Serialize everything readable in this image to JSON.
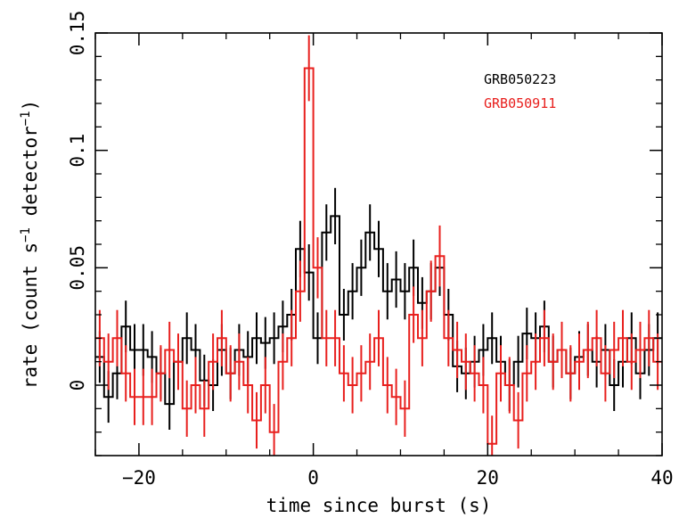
{
  "chart_data": {
    "type": "line",
    "style": "binned step histogram with 1-sigma error bars",
    "xlabel": "time since burst (s)",
    "ylabel": "rate (count s",
    "ylabel_sup1": "−1",
    "ylabel_mid": " detector",
    "ylabel_sup2": "−1",
    "ylabel_end": ")",
    "xlim": [
      -25,
      40
    ],
    "ylim": [
      -0.03,
      0.15
    ],
    "xticks": [
      -20,
      0,
      20,
      40
    ],
    "xtick_labels": [
      "−20",
      "0",
      "20",
      "40"
    ],
    "yticks": [
      0,
      0.05,
      0.1,
      0.15
    ],
    "ytick_labels": [
      "0",
      "0.05",
      "0.1",
      "0.15"
    ],
    "grid": false,
    "legend": "top-right",
    "bin_width_s": 1,
    "series": [
      {
        "name": "GRB050223",
        "color": "#000000",
        "x": [
          -25,
          -24,
          -23,
          -22,
          -21,
          -20,
          -19,
          -18,
          -17,
          -16,
          -15,
          -14,
          -13,
          -12,
          -11,
          -10,
          -9,
          -8,
          -7,
          -6,
          -5,
          -4,
          -3,
          -2,
          -1,
          0,
          1,
          2,
          3,
          4,
          5,
          6,
          7,
          8,
          9,
          10,
          11,
          12,
          13,
          14,
          15,
          16,
          17,
          18,
          19,
          20,
          21,
          22,
          23,
          24,
          25,
          26,
          27,
          28,
          29,
          30,
          31,
          32,
          33,
          34,
          35,
          36,
          37,
          38,
          39
        ],
        "values": [
          0.012,
          -0.005,
          0.005,
          0.025,
          0.015,
          0.015,
          0.012,
          0.005,
          -0.008,
          0.01,
          0.02,
          0.015,
          0.002,
          0.0,
          0.015,
          0.005,
          0.015,
          0.012,
          0.02,
          0.018,
          0.02,
          0.025,
          0.03,
          0.058,
          0.048,
          0.02,
          0.065,
          0.072,
          0.03,
          0.04,
          0.05,
          0.065,
          0.058,
          0.04,
          0.045,
          0.04,
          0.05,
          0.035,
          0.04,
          0.05,
          0.03,
          0.008,
          0.005,
          0.01,
          0.015,
          0.02,
          0.01,
          0.0,
          0.01,
          0.022,
          0.02,
          0.025,
          0.01,
          0.015,
          0.005,
          0.012,
          0.015,
          0.01,
          0.015,
          0.0,
          0.01,
          0.02,
          0.005,
          0.015,
          0.02
        ],
        "errors": [
          0.011,
          0.011,
          0.011,
          0.011,
          0.011,
          0.011,
          0.011,
          0.011,
          0.011,
          0.011,
          0.011,
          0.011,
          0.011,
          0.011,
          0.011,
          0.011,
          0.011,
          0.011,
          0.011,
          0.011,
          0.011,
          0.011,
          0.011,
          0.012,
          0.012,
          0.011,
          0.012,
          0.012,
          0.011,
          0.012,
          0.012,
          0.012,
          0.012,
          0.012,
          0.012,
          0.012,
          0.012,
          0.011,
          0.012,
          0.012,
          0.011,
          0.011,
          0.011,
          0.011,
          0.011,
          0.011,
          0.011,
          0.011,
          0.011,
          0.011,
          0.011,
          0.011,
          0.011,
          0.011,
          0.011,
          0.011,
          0.011,
          0.011,
          0.011,
          0.011,
          0.011,
          0.011,
          0.011,
          0.011,
          0.011
        ]
      },
      {
        "name": "GRB050911",
        "color": "#e8201e",
        "x": [
          -25,
          -24,
          -23,
          -22,
          -21,
          -20,
          -19,
          -18,
          -17,
          -16,
          -15,
          -14,
          -13,
          -12,
          -11,
          -10,
          -9,
          -8,
          -7,
          -6,
          -5,
          -4,
          -3,
          -2,
          -1,
          0,
          1,
          2,
          3,
          4,
          5,
          6,
          7,
          8,
          9,
          10,
          11,
          12,
          13,
          14,
          15,
          16,
          17,
          18,
          19,
          20,
          21,
          22,
          23,
          24,
          25,
          26,
          27,
          28,
          29,
          30,
          31,
          32,
          33,
          34,
          35,
          36,
          37,
          38,
          39
        ],
        "values": [
          0.02,
          0.01,
          0.02,
          0.005,
          -0.005,
          -0.005,
          -0.005,
          0.005,
          0.015,
          0.01,
          -0.01,
          0.0,
          -0.01,
          0.01,
          0.02,
          0.005,
          0.01,
          0.0,
          -0.015,
          0.0,
          -0.02,
          0.01,
          0.02,
          0.04,
          0.135,
          0.05,
          0.02,
          0.02,
          0.005,
          0.0,
          0.005,
          0.01,
          0.02,
          0.0,
          -0.005,
          -0.01,
          0.03,
          0.02,
          0.04,
          0.055,
          0.02,
          0.015,
          0.01,
          0.005,
          0.0,
          -0.025,
          0.005,
          0.0,
          -0.015,
          0.005,
          0.01,
          0.02,
          0.01,
          0.015,
          0.005,
          0.01,
          0.015,
          0.02,
          0.005,
          0.015,
          0.02,
          0.01,
          0.015,
          0.02,
          0.01
        ],
        "errors": [
          0.012,
          0.012,
          0.012,
          0.012,
          0.012,
          0.012,
          0.012,
          0.012,
          0.012,
          0.012,
          0.012,
          0.012,
          0.012,
          0.012,
          0.012,
          0.012,
          0.012,
          0.012,
          0.012,
          0.012,
          0.012,
          0.012,
          0.012,
          0.013,
          0.014,
          0.013,
          0.012,
          0.012,
          0.012,
          0.012,
          0.012,
          0.012,
          0.012,
          0.012,
          0.012,
          0.012,
          0.012,
          0.012,
          0.013,
          0.013,
          0.012,
          0.012,
          0.012,
          0.012,
          0.012,
          0.012,
          0.012,
          0.012,
          0.012,
          0.012,
          0.012,
          0.012,
          0.012,
          0.012,
          0.012,
          0.012,
          0.012,
          0.012,
          0.012,
          0.012,
          0.012,
          0.012,
          0.012,
          0.012,
          0.012
        ]
      }
    ]
  }
}
